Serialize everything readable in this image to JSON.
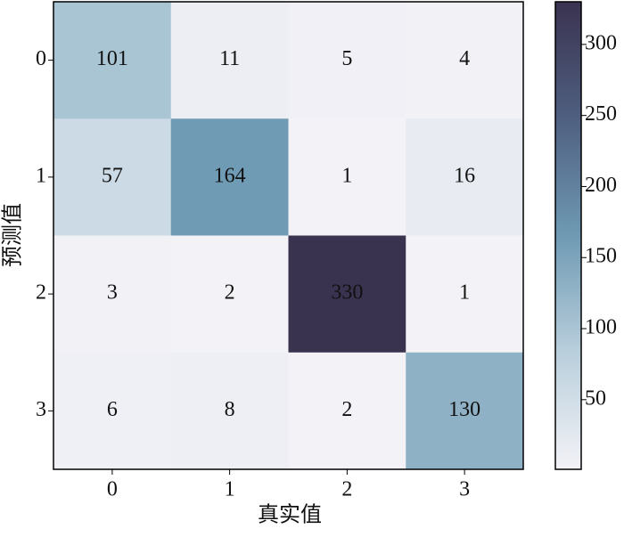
{
  "chart_data": {
    "type": "heatmap",
    "x_label": "真实值",
    "y_label": "预测值",
    "x_categories": [
      "0",
      "1",
      "2",
      "3"
    ],
    "y_categories": [
      "0",
      "1",
      "2",
      "3"
    ],
    "values": [
      [
        101,
        11,
        5,
        4
      ],
      [
        57,
        164,
        1,
        16
      ],
      [
        3,
        2,
        330,
        1
      ],
      [
        6,
        8,
        2,
        130
      ]
    ],
    "colormap": [
      "#f3f2f7",
      "#b9cfdc",
      "#6f9ab4",
      "#4f5f80",
      "#3a3350"
    ],
    "clim": [
      1,
      330
    ],
    "colorbar_ticks": [
      50,
      100,
      150,
      200,
      250,
      300
    ]
  }
}
